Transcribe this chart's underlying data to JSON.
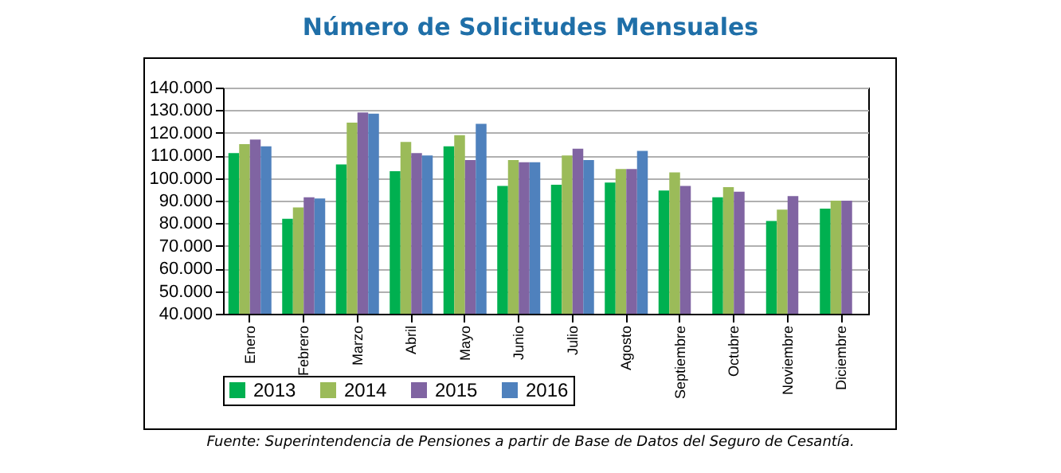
{
  "chart_data": {
    "type": "bar",
    "title": "Número de Solicitudes Mensuales",
    "categories": [
      "Enero",
      "Febrero",
      "Marzo",
      "Abril",
      "Mayo",
      "Junio",
      "Julio",
      "Agosto",
      "Septiembre",
      "Octubre",
      "Noviembre",
      "Diciembre"
    ],
    "series": [
      {
        "name": "2013",
        "color": "#00b050",
        "values": [
          111000,
          82000,
          106000,
          103000,
          114000,
          96500,
          97000,
          98000,
          94500,
          91500,
          81000,
          86500
        ]
      },
      {
        "name": "2014",
        "color": "#9bbb59",
        "values": [
          115000,
          87000,
          124500,
          116000,
          119000,
          108000,
          110000,
          104000,
          102500,
          96000,
          86000,
          90000
        ]
      },
      {
        "name": "2015",
        "color": "#8064a2",
        "values": [
          117000,
          91500,
          129000,
          111000,
          108000,
          107000,
          113000,
          104000,
          96500,
          94000,
          92000,
          90000
        ]
      },
      {
        "name": "2016",
        "color": "#4f81bd",
        "values": [
          114000,
          91000,
          128500,
          110000,
          124000,
          107000,
          108000,
          112000,
          null,
          null,
          null,
          null
        ]
      }
    ],
    "ylim": [
      40000,
      140000
    ],
    "yticks": [
      {
        "value": 40000,
        "label": "40.000"
      },
      {
        "value": 50000,
        "label": "50.000"
      },
      {
        "value": 60000,
        "label": "60.000"
      },
      {
        "value": 70000,
        "label": "70.000"
      },
      {
        "value": 80000,
        "label": "80.000"
      },
      {
        "value": 90000,
        "label": "90.000"
      },
      {
        "value": 100000,
        "label": "100.000"
      },
      {
        "value": 110000,
        "label": "110.000"
      },
      {
        "value": 120000,
        "label": "120.000"
      },
      {
        "value": 130000,
        "label": "130.000"
      },
      {
        "value": 140000,
        "label": "140.000"
      }
    ],
    "grid": "y",
    "legend": "bottom",
    "annotations": [
      "Fuente: Superintendencia de Pensiones a partir de Base de Datos del Seguro de Cesantía."
    ]
  }
}
